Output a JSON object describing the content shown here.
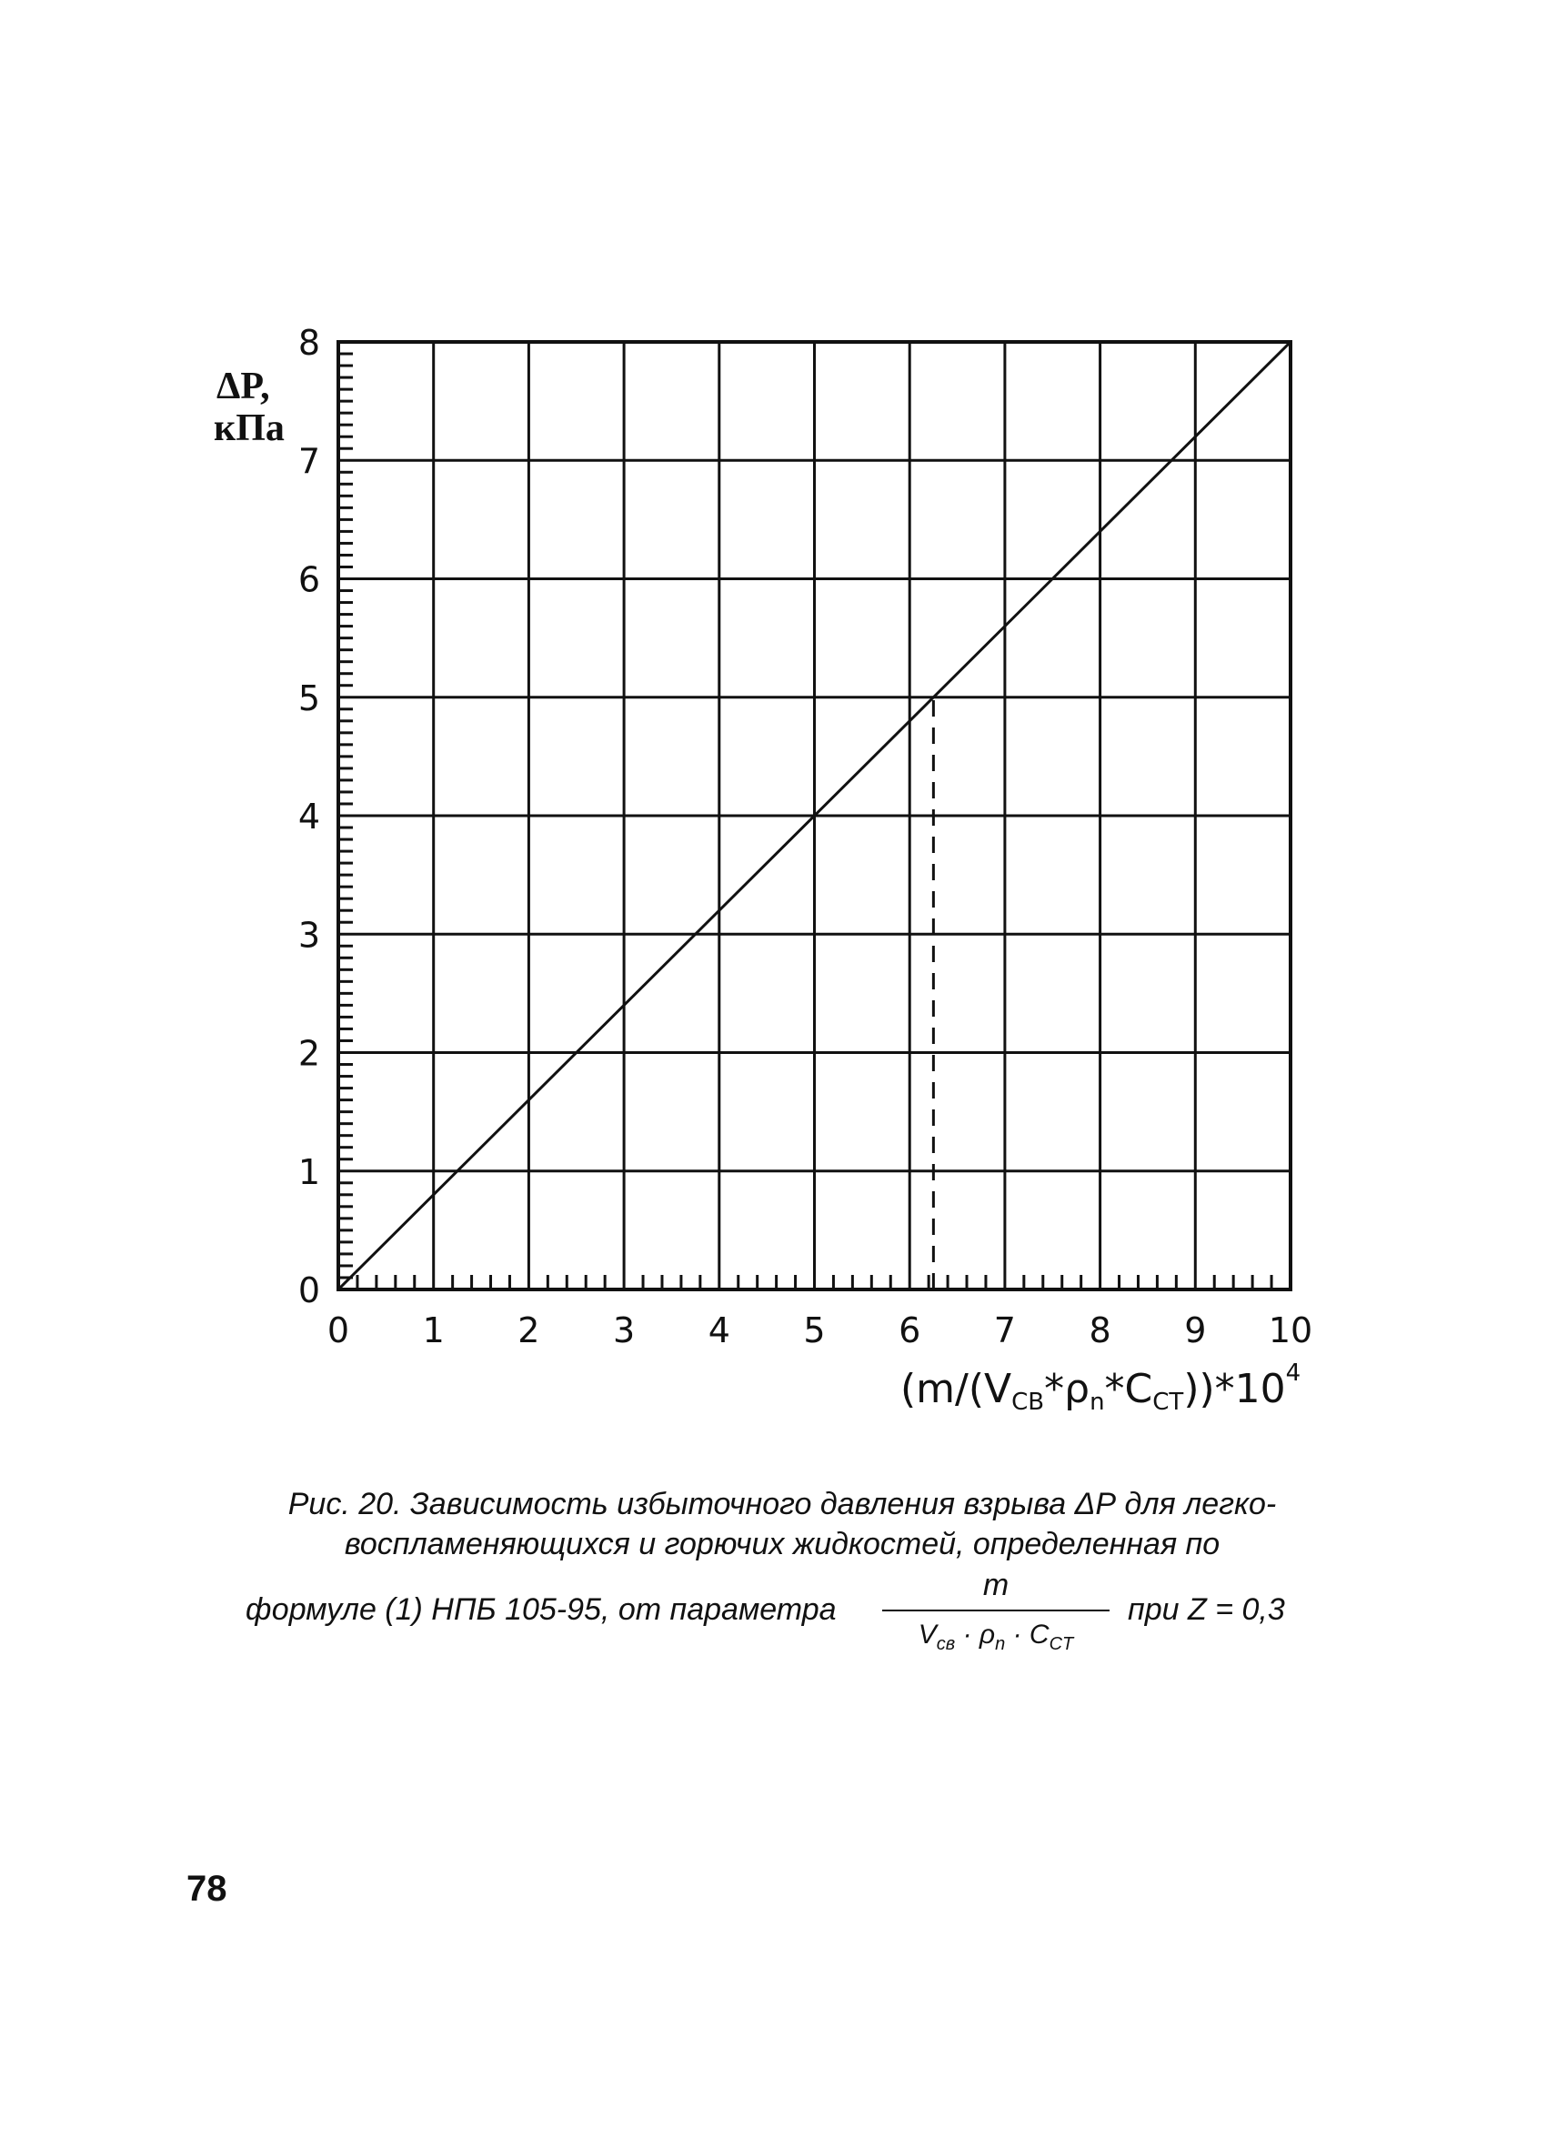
{
  "chart_data": {
    "type": "line",
    "title": "",
    "y_label_line1": "ΔP,",
    "y_label_line2": "кПа",
    "x_label_main": "(m/(V",
    "x_label_sub1": "СВ",
    "x_label_mid1": "*ρ",
    "x_label_sub2": "n",
    "x_label_mid2": "*C",
    "x_label_sub3": "СТ",
    "x_label_end": "))*10",
    "x_label_sup": "4",
    "xlim": [
      0,
      10
    ],
    "ylim": [
      0,
      8
    ],
    "x_ticks": [
      "0",
      "1",
      "2",
      "3",
      "4",
      "5",
      "6",
      "7",
      "8",
      "9",
      "10"
    ],
    "y_ticks": [
      "0",
      "1",
      "2",
      "3",
      "4",
      "5",
      "6",
      "7",
      "8"
    ],
    "grid": true,
    "series": [
      {
        "x": [
          0,
          10
        ],
        "y": [
          0,
          8
        ],
        "style": "solid"
      }
    ],
    "reference_line": {
      "x": [
        6.25,
        6.25
      ],
      "y": [
        0,
        5
      ],
      "style": "dashed"
    },
    "line_color": "#111111"
  },
  "caption": {
    "line1": "Рис. 20. Зависимость избыточного давления взрыва ΔР для легко-",
    "line2": "воспламеняющихся и горючих жидкостей, определенная по",
    "line3_start": "формуле (1) НПБ 105-95, от параметра",
    "fraction_numerator": "m",
    "den_v": "V",
    "den_v_sub": "св",
    "den_rho": "· ρ",
    "den_rho_sub": "n",
    "den_c": "· C",
    "den_c_sub": "CT",
    "line3_end": "при Z = 0,3"
  },
  "page_number": "78"
}
